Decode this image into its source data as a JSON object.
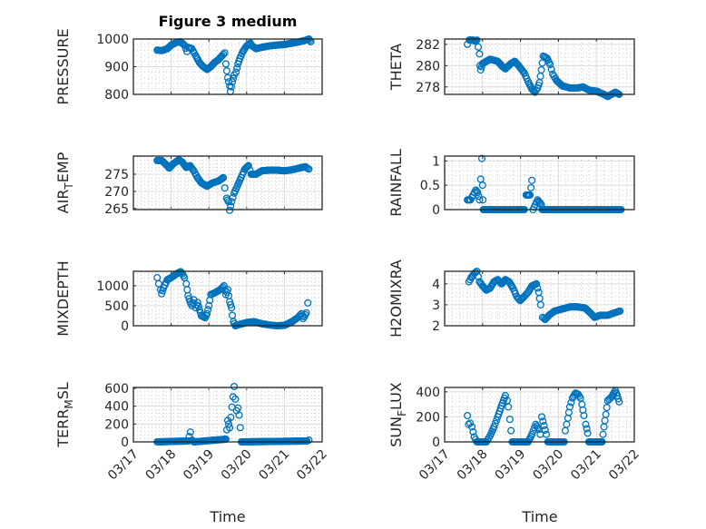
{
  "title": "Figure 3 medium",
  "xlabel": "Time",
  "x_tick_labels": [
    "03/17",
    "03/18",
    "03/19",
    "03/20",
    "03/21",
    "03/22"
  ],
  "marker_color": "#0072BD",
  "chart_data": [
    {
      "type": "scatter",
      "ylabel": "PRESSURE",
      "ylim": [
        800,
        1000
      ],
      "yticks": [
        800,
        900,
        1000
      ],
      "xlim": [
        17,
        22
      ],
      "points": [
        [
          17.63,
          960
        ],
        [
          17.75,
          958
        ],
        [
          17.9,
          965
        ],
        [
          18.0,
          978
        ],
        [
          18.15,
          988
        ],
        [
          18.25,
          990
        ],
        [
          18.35,
          978
        ],
        [
          18.42,
          955
        ],
        [
          18.45,
          970
        ],
        [
          18.55,
          965
        ],
        [
          18.65,
          940
        ],
        [
          18.75,
          915
        ],
        [
          18.85,
          900
        ],
        [
          18.95,
          890
        ],
        [
          19.05,
          900
        ],
        [
          19.15,
          915
        ],
        [
          19.25,
          925
        ],
        [
          19.35,
          940
        ],
        [
          19.42,
          950
        ],
        [
          19.45,
          910
        ],
        [
          19.5,
          860
        ],
        [
          19.55,
          830
        ],
        [
          19.57,
          810
        ],
        [
          19.62,
          845
        ],
        [
          19.67,
          870
        ],
        [
          19.72,
          880
        ],
        [
          19.77,
          910
        ],
        [
          19.82,
          930
        ],
        [
          19.9,
          955
        ],
        [
          20.0,
          975
        ],
        [
          20.1,
          985
        ],
        [
          20.15,
          975
        ],
        [
          20.25,
          965
        ],
        [
          20.4,
          970
        ],
        [
          20.6,
          975
        ],
        [
          20.8,
          978
        ],
        [
          21.0,
          980
        ],
        [
          21.2,
          985
        ],
        [
          21.4,
          990
        ],
        [
          21.55,
          995
        ],
        [
          21.65,
          1000
        ],
        [
          21.7,
          990
        ]
      ]
    },
    {
      "type": "scatter",
      "ylabel": "THETA",
      "ylim": [
        277.3,
        282.5
      ],
      "yticks": [
        278,
        280,
        282
      ],
      "xlim": [
        17,
        22
      ],
      "points": [
        [
          17.6,
          282
        ],
        [
          17.65,
          282.4
        ],
        [
          17.7,
          282.4
        ],
        [
          17.75,
          282.4
        ],
        [
          17.8,
          282.3
        ],
        [
          17.85,
          282.4
        ],
        [
          17.92,
          281.1
        ],
        [
          17.93,
          280
        ],
        [
          17.95,
          279.6
        ],
        [
          18.0,
          280.2
        ],
        [
          18.2,
          280.6
        ],
        [
          18.4,
          280.4
        ],
        [
          18.5,
          280
        ],
        [
          18.6,
          279.7
        ],
        [
          18.75,
          280.2
        ],
        [
          18.85,
          280.4
        ],
        [
          18.95,
          280
        ],
        [
          19.1,
          279.3
        ],
        [
          19.2,
          278.5
        ],
        [
          19.3,
          277.8
        ],
        [
          19.38,
          277.5
        ],
        [
          19.45,
          277.9
        ],
        [
          19.5,
          278.4
        ],
        [
          19.55,
          279.6
        ],
        [
          19.6,
          280.9
        ],
        [
          19.7,
          280.7
        ],
        [
          19.78,
          280.1
        ],
        [
          19.85,
          279.2
        ],
        [
          19.95,
          278.6
        ],
        [
          20.1,
          278.1
        ],
        [
          20.3,
          277.9
        ],
        [
          20.5,
          277.9
        ],
        [
          20.65,
          278
        ],
        [
          20.8,
          277.7
        ],
        [
          21.0,
          277.6
        ],
        [
          21.2,
          277.3
        ],
        [
          21.3,
          277.1
        ],
        [
          21.4,
          277.3
        ],
        [
          21.5,
          277.5
        ],
        [
          21.6,
          277.3
        ]
      ]
    },
    {
      "type": "scatter",
      "ylabel": "AIR_TEMP",
      "ylim": [
        264.7,
        280.3
      ],
      "yticks": [
        265,
        270,
        275
      ],
      "xlim": [
        17,
        22
      ],
      "points": [
        [
          17.63,
          279
        ],
        [
          17.75,
          279
        ],
        [
          17.85,
          278
        ],
        [
          17.95,
          276.8
        ],
        [
          18.05,
          278
        ],
        [
          18.2,
          279.2
        ],
        [
          18.3,
          278.5
        ],
        [
          18.4,
          277
        ],
        [
          18.5,
          277.5
        ],
        [
          18.6,
          276
        ],
        [
          18.7,
          274
        ],
        [
          18.8,
          272.5
        ],
        [
          18.95,
          271.5
        ],
        [
          19.1,
          272.5
        ],
        [
          19.25,
          273
        ],
        [
          19.38,
          274
        ],
        [
          19.42,
          271
        ],
        [
          19.47,
          268
        ],
        [
          19.52,
          267
        ],
        [
          19.55,
          264.5
        ],
        [
          19.6,
          267
        ],
        [
          19.67,
          269.5
        ],
        [
          19.75,
          271.5
        ],
        [
          19.85,
          274
        ],
        [
          19.95,
          276.5
        ],
        [
          20.05,
          277.5
        ],
        [
          20.12,
          275
        ],
        [
          20.25,
          275
        ],
        [
          20.4,
          276
        ],
        [
          20.6,
          276.2
        ],
        [
          20.8,
          276.2
        ],
        [
          21.0,
          276
        ],
        [
          21.2,
          276.3
        ],
        [
          21.4,
          276.8
        ],
        [
          21.55,
          277.2
        ],
        [
          21.65,
          276.5
        ]
      ]
    },
    {
      "type": "scatter",
      "ylabel": "RAINFALL",
      "ylim": [
        0,
        1.1
      ],
      "yticks": [
        0,
        0.5,
        1
      ],
      "xlim": [
        17,
        22
      ],
      "points": [
        [
          17.6,
          0.2
        ],
        [
          17.68,
          0.2
        ],
        [
          17.75,
          0.3
        ],
        [
          17.82,
          0.4
        ],
        [
          17.87,
          0.35
        ],
        [
          17.92,
          0.2
        ],
        [
          17.98,
          1.05
        ],
        [
          18.0,
          0.5
        ],
        [
          18.01,
          0.2
        ],
        [
          18.02,
          0
        ],
        [
          19.1,
          0
        ],
        [
          19.15,
          0.3
        ],
        [
          19.25,
          0.3
        ],
        [
          19.3,
          0.6
        ],
        [
          19.33,
          0
        ],
        [
          19.45,
          0.2
        ],
        [
          19.55,
          0.1
        ],
        [
          19.57,
          0
        ],
        [
          21.65,
          0
        ]
      ]
    },
    {
      "type": "scatter",
      "ylabel": "MIXDEPTH",
      "ylim": [
        0,
        1360
      ],
      "yticks": [
        0,
        500,
        1000
      ],
      "xlim": [
        17,
        22
      ],
      "points": [
        [
          17.63,
          1200
        ],
        [
          17.67,
          1050
        ],
        [
          17.72,
          900
        ],
        [
          17.75,
          800
        ],
        [
          17.8,
          950
        ],
        [
          17.9,
          1150
        ],
        [
          18.0,
          1200
        ],
        [
          18.15,
          1300
        ],
        [
          18.25,
          1350
        ],
        [
          18.3,
          1300
        ],
        [
          18.35,
          1200
        ],
        [
          18.4,
          1050
        ],
        [
          18.45,
          750
        ],
        [
          18.5,
          600
        ],
        [
          18.55,
          500
        ],
        [
          18.6,
          650
        ],
        [
          18.65,
          450
        ],
        [
          18.7,
          580
        ],
        [
          18.75,
          400
        ],
        [
          18.8,
          250
        ],
        [
          18.9,
          200
        ],
        [
          18.95,
          300
        ],
        [
          19.0,
          500
        ],
        [
          19.05,
          780
        ],
        [
          19.15,
          820
        ],
        [
          19.3,
          900
        ],
        [
          19.4,
          1000
        ],
        [
          19.45,
          780
        ],
        [
          19.5,
          900
        ],
        [
          19.55,
          600
        ],
        [
          19.6,
          450
        ],
        [
          19.62,
          260
        ],
        [
          19.65,
          100
        ],
        [
          19.7,
          0
        ],
        [
          19.8,
          30
        ],
        [
          20.0,
          80
        ],
        [
          20.2,
          100
        ],
        [
          20.4,
          50
        ],
        [
          20.6,
          20
        ],
        [
          20.8,
          0
        ],
        [
          21.0,
          10
        ],
        [
          21.2,
          100
        ],
        [
          21.35,
          200
        ],
        [
          21.45,
          300
        ],
        [
          21.5,
          180
        ],
        [
          21.58,
          320
        ],
        [
          21.62,
          570
        ]
      ]
    },
    {
      "type": "scatter",
      "ylabel": "H2OMIXRA",
      "ylim": [
        2,
        4.6
      ],
      "yticks": [
        2,
        3,
        4
      ],
      "xlim": [
        17,
        22
      ],
      "points": [
        [
          17.64,
          4.1
        ],
        [
          17.7,
          4.3
        ],
        [
          17.78,
          4.5
        ],
        [
          17.85,
          4.6
        ],
        [
          17.92,
          4.1
        ],
        [
          18.0,
          3.9
        ],
        [
          18.1,
          3.7
        ],
        [
          18.2,
          3.8
        ],
        [
          18.3,
          4.1
        ],
        [
          18.4,
          4.2
        ],
        [
          18.5,
          4.0
        ],
        [
          18.6,
          4.2
        ],
        [
          18.7,
          4.1
        ],
        [
          18.8,
          3.8
        ],
        [
          18.9,
          3.4
        ],
        [
          18.99,
          3.2
        ],
        [
          19.1,
          3.4
        ],
        [
          19.2,
          3.6
        ],
        [
          19.3,
          3.9
        ],
        [
          19.42,
          4.0
        ],
        [
          19.48,
          3.6
        ],
        [
          19.53,
          3.0
        ],
        [
          19.58,
          2.4
        ],
        [
          19.65,
          2.3
        ],
        [
          19.75,
          2.5
        ],
        [
          19.9,
          2.7
        ],
        [
          20.1,
          2.8
        ],
        [
          20.3,
          2.9
        ],
        [
          20.5,
          2.9
        ],
        [
          20.7,
          2.85
        ],
        [
          20.85,
          2.6
        ],
        [
          20.95,
          2.4
        ],
        [
          21.1,
          2.5
        ],
        [
          21.3,
          2.5
        ],
        [
          21.45,
          2.6
        ],
        [
          21.62,
          2.7
        ]
      ]
    },
    {
      "type": "scatter",
      "ylabel": "TERR_MSL",
      "ylim": [
        0,
        610
      ],
      "yticks": [
        0,
        200,
        400,
        600
      ],
      "xlim": [
        17,
        22
      ],
      "points": [
        [
          17.63,
          0
        ],
        [
          18.45,
          10
        ],
        [
          18.51,
          110
        ],
        [
          18.55,
          20
        ],
        [
          18.6,
          0
        ],
        [
          19.45,
          30
        ],
        [
          19.5,
          240
        ],
        [
          19.55,
          160
        ],
        [
          19.67,
          620
        ],
        [
          19.7,
          480
        ],
        [
          19.73,
          350
        ],
        [
          19.77,
          380
        ],
        [
          19.8,
          300
        ],
        [
          19.83,
          160
        ],
        [
          19.86,
          0
        ],
        [
          21.6,
          10
        ],
        [
          21.65,
          20
        ]
      ]
    },
    {
      "type": "scatter",
      "ylabel": "SUN_FLUX",
      "ylim": [
        0,
        435
      ],
      "yticks": [
        0,
        200,
        400
      ],
      "xlim": [
        17,
        22
      ],
      "points": [
        [
          17.6,
          210
        ],
        [
          17.63,
          140
        ],
        [
          17.67,
          150
        ],
        [
          17.72,
          120
        ],
        [
          17.78,
          40
        ],
        [
          17.85,
          0
        ],
        [
          18.1,
          0
        ],
        [
          18.2,
          50
        ],
        [
          18.3,
          120
        ],
        [
          18.4,
          200
        ],
        [
          18.5,
          290
        ],
        [
          18.6,
          370
        ],
        [
          18.65,
          330
        ],
        [
          18.68,
          280
        ],
        [
          18.72,
          180
        ],
        [
          18.75,
          90
        ],
        [
          18.78,
          0
        ],
        [
          19.2,
          0
        ],
        [
          19.3,
          60
        ],
        [
          19.4,
          140
        ],
        [
          19.48,
          100
        ],
        [
          19.52,
          60
        ],
        [
          19.56,
          200
        ],
        [
          19.62,
          130
        ],
        [
          19.68,
          60
        ],
        [
          19.72,
          0
        ],
        [
          20.15,
          0
        ],
        [
          20.18,
          90
        ],
        [
          20.25,
          190
        ],
        [
          20.3,
          280
        ],
        [
          20.37,
          350
        ],
        [
          20.45,
          390
        ],
        [
          20.52,
          380
        ],
        [
          20.58,
          350
        ],
        [
          20.62,
          300
        ],
        [
          20.67,
          210
        ],
        [
          20.72,
          140
        ],
        [
          20.77,
          70
        ],
        [
          20.8,
          0
        ],
        [
          21.15,
          0
        ],
        [
          21.2,
          120
        ],
        [
          21.25,
          220
        ],
        [
          21.3,
          330
        ],
        [
          21.4,
          360
        ],
        [
          21.5,
          410
        ],
        [
          21.55,
          370
        ],
        [
          21.6,
          320
        ]
      ]
    }
  ]
}
